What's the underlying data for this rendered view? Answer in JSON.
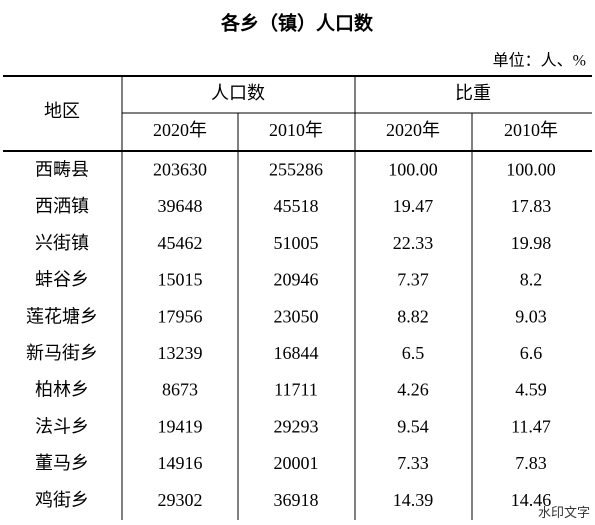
{
  "title": "各乡（镇）人口数",
  "unit": "单位：人、%",
  "table": {
    "header": {
      "region": "地区",
      "population": "人口数",
      "share": "比重",
      "years": [
        "2020年",
        "2010年",
        "2020年",
        "2010年"
      ]
    },
    "rows": [
      [
        "西畴县",
        "203630",
        "255286",
        "100.00",
        "100.00"
      ],
      [
        "西洒镇",
        "39648",
        "45518",
        "19.47",
        "17.83"
      ],
      [
        "兴街镇",
        "45462",
        "51005",
        "22.33",
        "19.98"
      ],
      [
        "蚌谷乡",
        "15015",
        "20946",
        "7.37",
        "8.2"
      ],
      [
        "莲花塘乡",
        "17956",
        "23050",
        "8.82",
        "9.03"
      ],
      [
        "新马街乡",
        "13239",
        "16844",
        "6.5",
        "6.6"
      ],
      [
        "柏林乡",
        "8673",
        "11711",
        "4.26",
        "4.59"
      ],
      [
        "法斗乡",
        "19419",
        "29293",
        "9.54",
        "11.47"
      ],
      [
        "董马乡",
        "14916",
        "20001",
        "7.33",
        "7.83"
      ],
      [
        "鸡街乡",
        "29302",
        "36918",
        "14.39",
        "14.46"
      ]
    ]
  },
  "watermark": "水印文字"
}
